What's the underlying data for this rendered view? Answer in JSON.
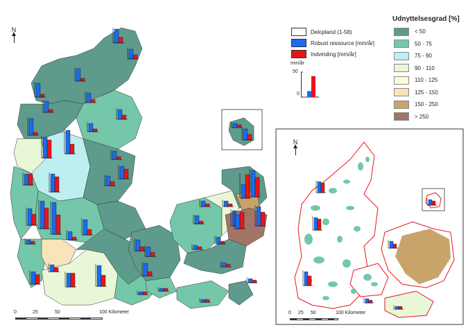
{
  "north_label": "N",
  "inset_north_label": "N",
  "legend_left": {
    "items": [
      {
        "label": "Delopland (1-58)",
        "color": "#ffffff"
      },
      {
        "label": "Robust ressource [mm/år]",
        "color": "#1a6cf0"
      },
      {
        "label": "Indvinding [mm/år]",
        "color": "#e8141b"
      }
    ]
  },
  "mini_chart": {
    "unit": "mm/år",
    "tick_top": "50",
    "tick_bottom": "0",
    "values": [
      12,
      42
    ]
  },
  "legend_right": {
    "title": "Udnyttelsesgrad [%]",
    "items": [
      {
        "label": "< 50",
        "color": "#5e9b8c"
      },
      {
        "label": "50 - 75",
        "color": "#74c7a9"
      },
      {
        "label": "75 - 90",
        "color": "#bdeef0"
      },
      {
        "label": "90 - 110",
        "color": "#e7f7d8"
      },
      {
        "label": "110 - 125",
        "color": "#fcfbd8"
      },
      {
        "label": "125 - 150",
        "color": "#f8e3bb"
      },
      {
        "label": "150 - 250",
        "color": "#c8a46a"
      },
      {
        "label": "> 250",
        "color": "#a37565"
      }
    ]
  },
  "scale_main": {
    "ticks": [
      "0",
      "25",
      "50",
      "100 Kilometer"
    ]
  },
  "scale_inset": {
    "ticks": [
      "0",
      "25",
      "50",
      "100 Kilometer"
    ]
  },
  "colors": {
    "robust": "#1a6cf0",
    "indvinding": "#e8141b",
    "boundary": "#e8141b"
  }
}
